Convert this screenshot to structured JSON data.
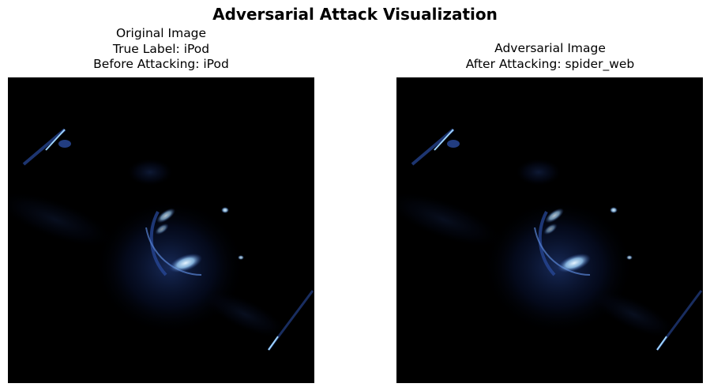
{
  "figure": {
    "title": "Adversarial Attack Visualization"
  },
  "panels": [
    {
      "lines": [
        "Original Image",
        "True Label: iPod",
        "Before Attacking: iPod"
      ]
    },
    {
      "lines": [
        "Adversarial Image",
        "After Attacking: spider_web"
      ]
    }
  ],
  "colors": {
    "background": "#000000",
    "glow_dark": "#0b1a4a",
    "glow_mid": "#2a4ca0",
    "highlight": "#9fd4ff",
    "highlight_bright": "#e6f4ff"
  }
}
